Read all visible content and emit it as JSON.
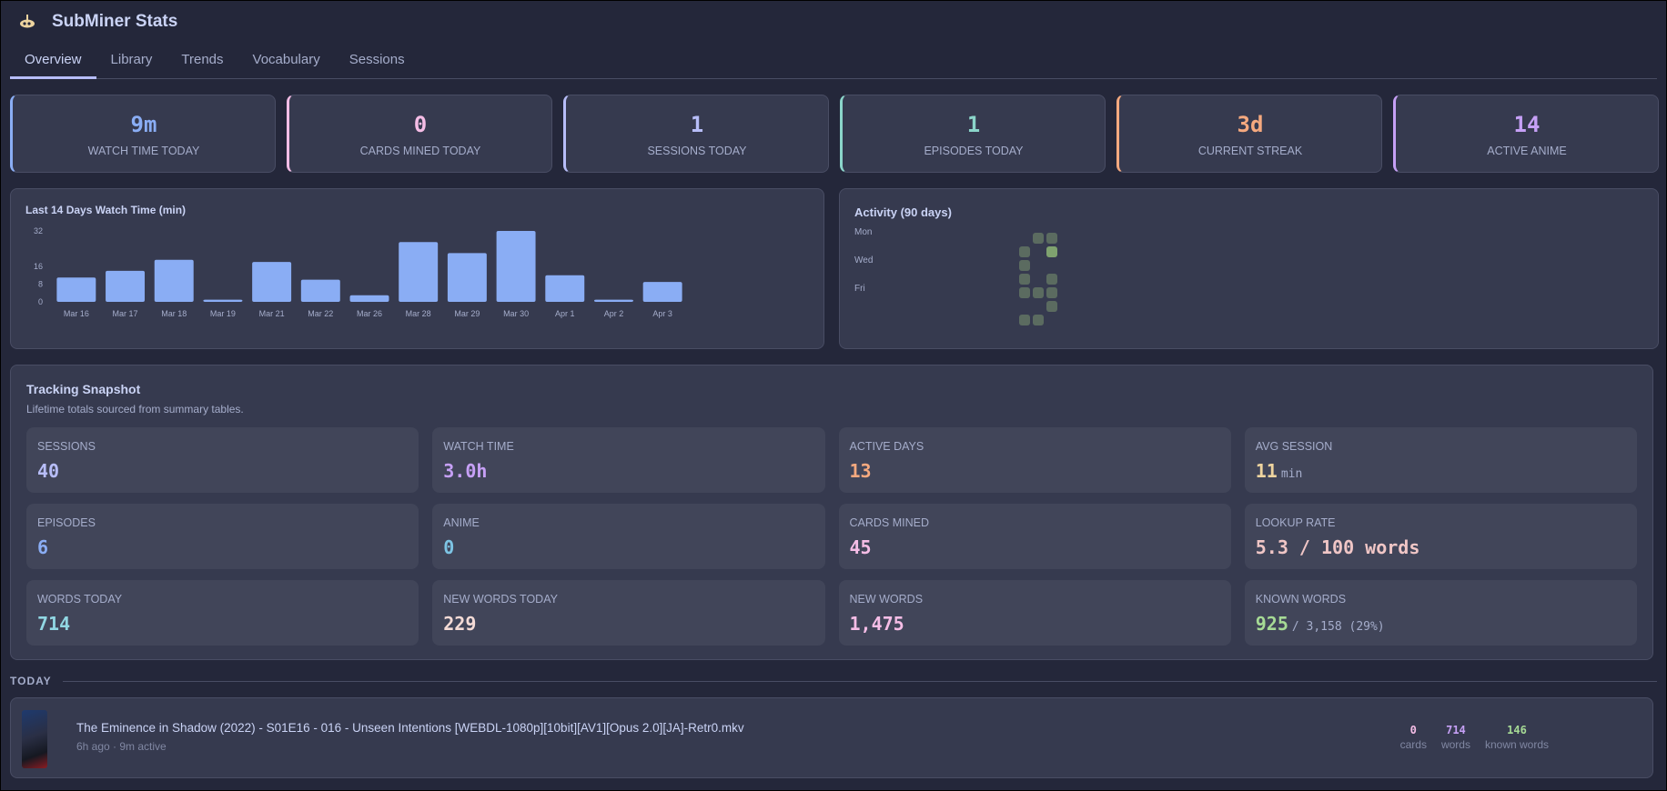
{
  "app": {
    "title": "SubMiner Stats",
    "logo_icon": "submarine-icon"
  },
  "tabs": [
    {
      "label": "Overview",
      "active": true
    },
    {
      "label": "Library"
    },
    {
      "label": "Trends"
    },
    {
      "label": "Vocabulary"
    },
    {
      "label": "Sessions"
    }
  ],
  "stats": [
    {
      "value": "9m",
      "label": "Watch Time Today",
      "color": "#8aadf4"
    },
    {
      "value": "0",
      "label": "Cards Mined Today",
      "color": "#f5bde6"
    },
    {
      "value": "1",
      "label": "Sessions Today",
      "color": "#b7bdf8"
    },
    {
      "value": "1",
      "label": "Episodes Today",
      "color": "#8bd5ca"
    },
    {
      "value": "3d",
      "label": "Current Streak",
      "color": "#f5a97f"
    },
    {
      "value": "14",
      "label": "Active Anime",
      "color": "#c6a0f6"
    }
  ],
  "chart_data": {
    "type": "bar",
    "title": "Last 14 Days Watch Time (min)",
    "categories": [
      "Mar 16",
      "Mar 17",
      "Mar 18",
      "Mar 19",
      "Mar 21",
      "Mar 22",
      "Mar 26",
      "Mar 28",
      "Mar 29",
      "Mar 30",
      "Apr 1",
      "Apr 2",
      "Apr 3"
    ],
    "values": [
      11,
      14,
      19,
      1,
      18,
      10,
      3,
      27,
      22,
      32,
      12,
      1,
      9
    ],
    "yticks": [
      "0",
      "8",
      "16",
      "32"
    ],
    "ylim": [
      0,
      32
    ],
    "color": "#8aadf4",
    "grid": false
  },
  "activity": {
    "title": "Activity (90 days)",
    "day_labels": [
      "Mon",
      "Wed",
      "Fri"
    ],
    "weeks": [
      [
        0,
        1,
        1,
        1,
        1,
        0,
        1
      ],
      [
        1,
        0,
        0,
        0,
        1,
        0,
        1
      ],
      [
        1,
        2,
        0,
        1,
        1,
        1,
        0
      ]
    ]
  },
  "snapshot": {
    "title": "Tracking Snapshot",
    "subtitle": "Lifetime totals sourced from summary tables.",
    "cells": [
      {
        "label": "Sessions",
        "value": "40",
        "color": "#b7bdf8"
      },
      {
        "label": "Watch Time",
        "value": "3.0h",
        "color": "#c6a0f6"
      },
      {
        "label": "Active Days",
        "value": "13",
        "color": "#f5a97f"
      },
      {
        "label": "Avg Session",
        "value": "11",
        "unit": "min",
        "color": "#eed49f"
      },
      {
        "label": "Episodes",
        "value": "6",
        "color": "#8aadf4"
      },
      {
        "label": "Anime",
        "value": "0",
        "color": "#7dc4e4"
      },
      {
        "label": "Cards Mined",
        "value": "45",
        "color": "#f5bde6"
      },
      {
        "label": "Lookup Rate",
        "value": "5.3 / 100 words",
        "color": "#f0c6c6"
      },
      {
        "label": "Words Today",
        "value": "714",
        "color": "#91d7e3"
      },
      {
        "label": "New Words Today",
        "value": "229",
        "color": "#f4dbd6"
      },
      {
        "label": "New Words",
        "value": "1,475",
        "color": "#f5bde6"
      },
      {
        "label": "Known Words",
        "value": "925",
        "unit": "/ 3,158 (29%)",
        "color": "#a6da95"
      }
    ]
  },
  "today": {
    "label": "TODAY",
    "session": {
      "title": "The Eminence in Shadow (2022) - S01E16 - 016 - Unseen Intentions [WEBDL-1080p][10bit][AV1][Opus 2.0][JA]-Retr0.mkv",
      "meta": "6h ago · 9m active",
      "stats": [
        {
          "value": "0",
          "label": "cards",
          "color": "#f5bde6"
        },
        {
          "value": "714",
          "label": "words",
          "color": "#c6a0f6"
        },
        {
          "value": "146",
          "label": "known words",
          "color": "#a6da95"
        }
      ]
    }
  }
}
